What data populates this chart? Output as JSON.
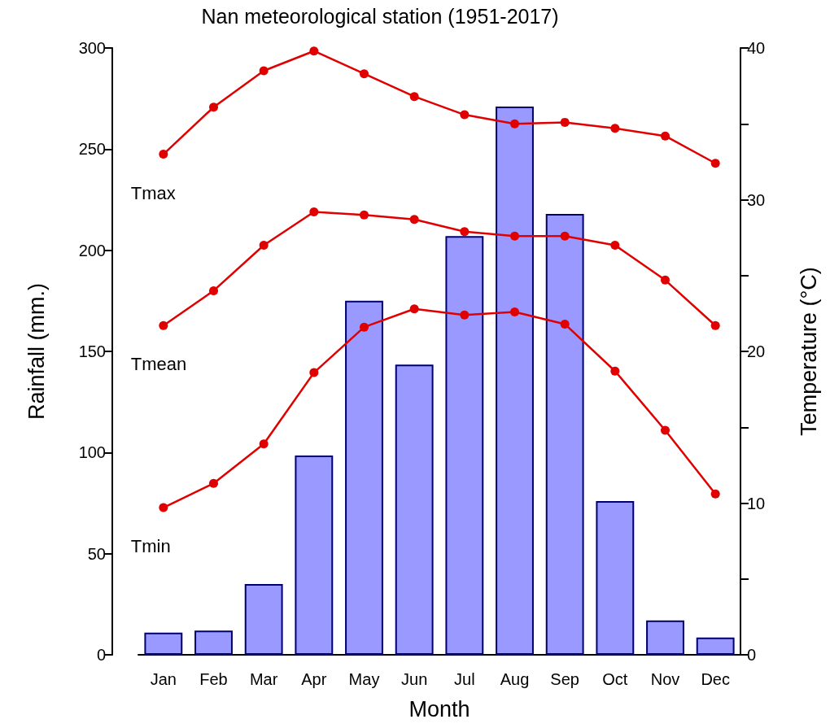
{
  "chart_data": {
    "type": "bar",
    "title": "Nan meteorological station (1951-2017)",
    "xlabel": "Month",
    "ylabel": "Rainfall (mm.)",
    "y2label": "Temperature (°C)",
    "categories": [
      "Jan",
      "Feb",
      "Mar",
      "Apr",
      "May",
      "Jun",
      "Jul",
      "Aug",
      "Sep",
      "Oct",
      "Nov",
      "Dec"
    ],
    "series": [
      {
        "color": "#9999ff",
        "values": [
          11,
          12,
          35,
          98.5,
          175,
          143.5,
          207,
          271,
          218,
          76,
          17,
          8.5
        ]
      },
      {
        "type": "line",
        "name": "Tmax",
        "axis": "y2",
        "color": "#e00000",
        "values": [
          33.0,
          36.1,
          38.5,
          39.8,
          38.3,
          36.8,
          35.6,
          35.0,
          35.1,
          34.7,
          34.2,
          32.4
        ]
      },
      {
        "type": "line",
        "name": "Tmean",
        "axis": "y2",
        "color": "#e00000",
        "values": [
          21.7,
          24.0,
          27.0,
          29.2,
          29.0,
          28.7,
          27.9,
          27.6,
          27.6,
          27.0,
          24.7,
          21.7
        ]
      },
      {
        "type": "line",
        "name": "Tmin",
        "axis": "y2",
        "color": "#e00000",
        "values": [
          9.7,
          11.3,
          13.9,
          18.6,
          21.6,
          22.8,
          22.4,
          22.6,
          21.8,
          18.7,
          14.8,
          10.6
        ]
      }
    ],
    "ylim": [
      0,
      300
    ],
    "yticks": [
      0,
      50,
      100,
      150,
      200,
      250,
      300
    ],
    "y2lim": [
      0,
      40
    ],
    "y2ticks": [
      0,
      {
        "value": 5,
        "label": null
      },
      10,
      {
        "value": 15,
        "label": null
      },
      20,
      {
        "value": 25,
        "label": null
      },
      30,
      {
        "value": 35,
        "label": null
      },
      40
    ],
    "marker": "circle",
    "line_style": "solid",
    "grid": false,
    "legend": false
  }
}
